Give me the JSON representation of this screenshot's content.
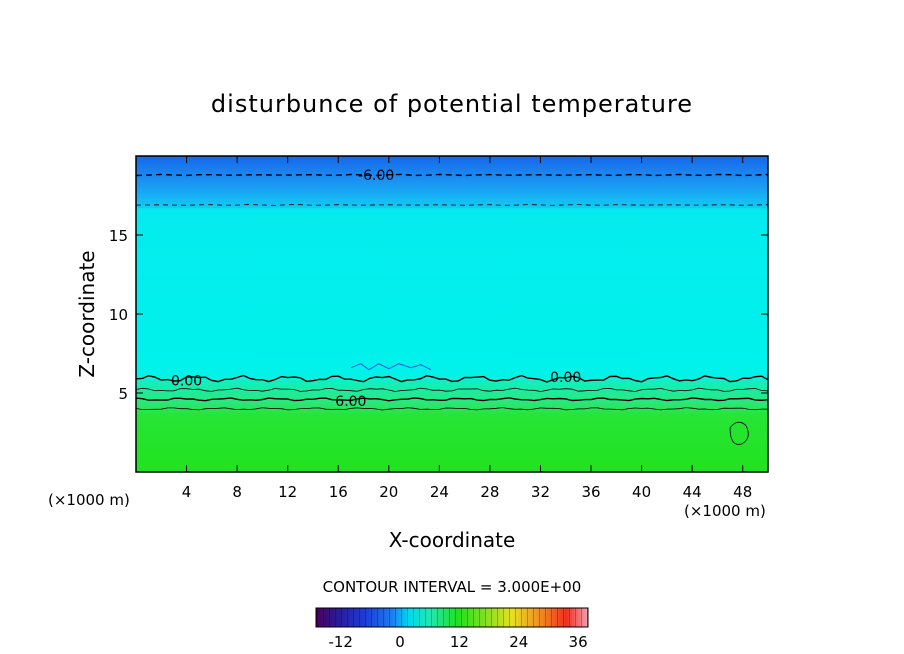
{
  "chart_data": {
    "type": "heatmap",
    "title": "disturbunce of potential temperature",
    "xlabel": "X-coordinate",
    "ylabel": "Z-coordinate",
    "x_unit_left": "(×1000 m)",
    "x_unit_right": "(×1000 m)",
    "xlim": [
      0,
      50
    ],
    "ylim": [
      0,
      20
    ],
    "x_ticks": [
      "4",
      "8",
      "12",
      "16",
      "20",
      "24",
      "28",
      "32",
      "36",
      "40",
      "44",
      "48"
    ],
    "y_ticks": [
      "5",
      "10",
      "15"
    ],
    "contour_interval_text": "CONTOUR INTERVAL = 3.000E+00",
    "contour_labels": [
      {
        "text": "-6.00",
        "x": 19,
        "z": 18.8
      },
      {
        "text": "0.00",
        "x": 4,
        "z": 5.8
      },
      {
        "text": "0.00",
        "x": 34,
        "z": 6.0
      },
      {
        "text": "6.00",
        "x": 17,
        "z": 4.5
      }
    ],
    "colorbar": {
      "range": [
        -17,
        38
      ],
      "tick_labels": [
        "-12",
        "0",
        "12",
        "24",
        "36"
      ],
      "tick_values": [
        -12,
        0,
        12,
        24,
        36
      ]
    },
    "bands": [
      {
        "z0": 0,
        "z1": 4,
        "value": 9
      },
      {
        "z0": 4,
        "z1": 5.8,
        "value": 6
      },
      {
        "z0": 5.8,
        "z1": 16.7,
        "value": 0
      },
      {
        "z0": 16.7,
        "z1": 18,
        "value": -3
      },
      {
        "z0": 18,
        "z1": 19,
        "value": -5
      },
      {
        "z0": 19,
        "z1": 20,
        "value": -7
      }
    ],
    "colors": {
      "low": "#1a6ff0",
      "mid": "#00f0ee",
      "band_6": "#2ee8a0",
      "high": "#23e523"
    }
  }
}
